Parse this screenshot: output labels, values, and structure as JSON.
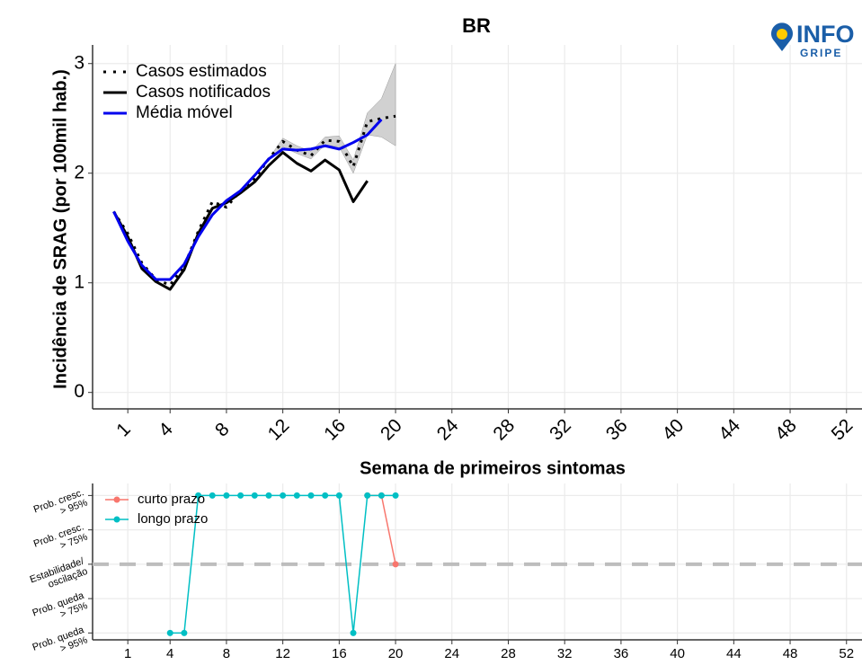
{
  "logo": {
    "title": "INFO",
    "subtitle": "GRIPE"
  },
  "chart_data": [
    {
      "type": "line",
      "title": "BR",
      "y_label": "Incidência de SRAG (por 100mil hab.)",
      "x_label": "Semana de primeiros sintomas",
      "x": [
        0,
        1,
        2,
        3,
        4,
        5,
        6,
        7,
        8,
        9,
        10,
        11,
        12,
        13,
        14,
        15,
        16,
        17,
        18,
        19,
        20
      ],
      "series": [
        {
          "name": "Casos estimados",
          "color": "#000000",
          "dash": "dotted",
          "values": [
            1.65,
            1.45,
            1.18,
            1.03,
            0.98,
            1.15,
            1.47,
            1.74,
            1.69,
            1.84,
            1.95,
            2.13,
            2.29,
            2.21,
            2.16,
            2.3,
            2.29,
            2.06,
            2.47,
            2.5,
            2.52
          ]
        },
        {
          "name": "Casos notificados",
          "color": "#000000",
          "dash": "solid",
          "values": [
            1.65,
            1.42,
            1.13,
            1.01,
            0.94,
            1.12,
            1.45,
            1.68,
            1.73,
            1.82,
            1.92,
            2.07,
            2.19,
            2.09,
            2.02,
            2.12,
            2.03,
            1.74,
            1.93,
            null,
            null
          ]
        },
        {
          "name": "Média móvel",
          "color": "#0000ee",
          "dash": "solid",
          "values": [
            1.65,
            1.38,
            1.16,
            1.03,
            1.03,
            1.17,
            1.42,
            1.62,
            1.75,
            1.84,
            1.98,
            2.13,
            2.22,
            2.21,
            2.22,
            2.25,
            2.22,
            2.28,
            2.35,
            2.49,
            null
          ]
        }
      ],
      "band": {
        "color": "#b3b3b3",
        "x": [
          11,
          12,
          13,
          14,
          15,
          16,
          17,
          18,
          19,
          20
        ],
        "lower": [
          2.13,
          2.24,
          2.18,
          2.13,
          2.26,
          2.24,
          2.0,
          2.35,
          2.33,
          2.25
        ],
        "upper": [
          2.13,
          2.32,
          2.25,
          2.2,
          2.33,
          2.34,
          2.12,
          2.55,
          2.68,
          3.0
        ]
      },
      "xlim": [
        -1.5,
        53.1
      ],
      "ylim": [
        -0.15,
        3.17
      ],
      "xticks": [
        1,
        4,
        8,
        12,
        16,
        20,
        24,
        28,
        32,
        36,
        40,
        44,
        48,
        52
      ],
      "yticks": [
        0,
        1,
        2,
        3
      ],
      "grid": true,
      "legend": "top-left"
    },
    {
      "type": "line",
      "markers": true,
      "x": [
        4,
        5,
        6,
        7,
        8,
        9,
        10,
        11,
        12,
        13,
        14,
        15,
        16,
        17,
        18,
        19,
        20
      ],
      "series": [
        {
          "name": "curto prazo",
          "color": "#F8766D",
          "values": [
            null,
            null,
            null,
            null,
            null,
            null,
            null,
            null,
            null,
            null,
            null,
            null,
            null,
            null,
            2,
            2,
            0
          ]
        },
        {
          "name": "longo prazo",
          "color": "#00BFC4",
          "values": [
            -2,
            -2,
            2,
            2,
            2,
            2,
            2,
            2,
            2,
            2,
            2,
            2,
            2,
            -2,
            2,
            2,
            2
          ]
        }
      ],
      "reference_line": 0,
      "xlim": [
        -1.5,
        53.1
      ],
      "ylim": [
        -2.2,
        2.35
      ],
      "xticks": [
        1,
        4,
        8,
        12,
        16,
        20,
        24,
        28,
        32,
        36,
        40,
        44,
        48,
        52
      ],
      "yticks": [
        {
          "value": -2,
          "label": "Prob. queda\n> 95%"
        },
        {
          "value": -1,
          "label": "Prob. queda\n> 75%"
        },
        {
          "value": 0,
          "label": "Estabilidade/\noscilação"
        },
        {
          "value": 1,
          "label": "Prob. cresc.\n> 75%"
        },
        {
          "value": 2,
          "label": "Prob. cresc.\n> 95%"
        }
      ],
      "grid": true,
      "legend": "top-left"
    }
  ]
}
